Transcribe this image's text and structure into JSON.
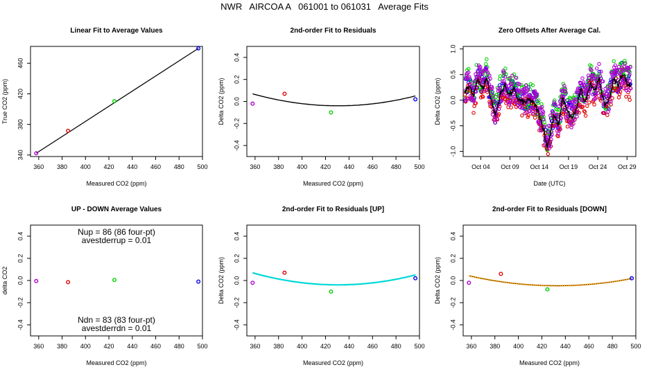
{
  "title": "NWR   AIRCOA A   061001 to 061031   Average Fits",
  "colors": {
    "purple": "#b000d0",
    "red": "#e00000",
    "green": "#00d000",
    "blue": "#0000e0",
    "cyan": "#00d8d8",
    "orange": "#ffa000"
  },
  "chart_data": [
    {
      "type": "scatter",
      "title": "Linear Fit to Average Values",
      "xlabel": "Measured CO2 (ppm)",
      "ylabel": "True CO2 (ppm)",
      "xlim": [
        353,
        500
      ],
      "ylim": [
        338,
        482
      ],
      "xticks": [
        360,
        380,
        400,
        420,
        440,
        460,
        480,
        500
      ],
      "yticks": [
        340,
        380,
        420,
        460
      ],
      "points": [
        {
          "x": 357.9,
          "y": 342.3,
          "color": "purple"
        },
        {
          "x": 385.1,
          "y": 371.6,
          "color": "red"
        },
        {
          "x": 424.7,
          "y": 410.3,
          "color": "green"
        },
        {
          "x": 496.5,
          "y": 479.4,
          "color": "blue"
        }
      ],
      "fit_line": [
        [
          357.9,
          342.3
        ],
        [
          496.5,
          479.4
        ]
      ]
    },
    {
      "type": "scatter",
      "title": "2nd-order Fit to Residuals",
      "xlabel": "Measured CO2 (ppm)",
      "ylabel": "Delta CO2 (ppm)",
      "xlim": [
        353,
        500
      ],
      "ylim": [
        -0.5,
        0.5
      ],
      "xticks": [
        360,
        380,
        400,
        420,
        440,
        460,
        480,
        500
      ],
      "yticks": [
        -0.4,
        -0.2,
        0.0,
        0.2,
        0.4
      ],
      "points": [
        {
          "x": 357.9,
          "y": -0.02,
          "color": "purple"
        },
        {
          "x": 385.1,
          "y": 0.07,
          "color": "red"
        },
        {
          "x": 424.7,
          "y": -0.1,
          "color": "green"
        },
        {
          "x": 496.5,
          "y": 0.02,
          "color": "blue"
        }
      ],
      "fit_curve": {
        "a": 2.06e-05,
        "b": -0.01774,
        "c": 3.78,
        "color": "black"
      }
    },
    {
      "type": "line",
      "title": "Zero Offsets After Average Cal.",
      "xlabel": "Date (UTC)",
      "ylabel": "Delta CO2 (ppm)",
      "xlim": [
        0.5,
        30.0
      ],
      "ylim": [
        -1.1,
        1.05
      ],
      "xticks": [
        {
          "v": 3.5,
          "label": "Oct 04"
        },
        {
          "v": 8.5,
          "label": "Oct 09"
        },
        {
          "v": 13.5,
          "label": "Oct 14"
        },
        {
          "v": 18.5,
          "label": "Oct 19"
        },
        {
          "v": 23.5,
          "label": "Oct 24"
        },
        {
          "v": 28.5,
          "label": "Oct 29"
        }
      ],
      "yticks": [
        -1.0,
        -0.5,
        0.0,
        0.5,
        1.0
      ],
      "series_keypoints": [
        [
          0.8,
          0.15
        ],
        [
          1.5,
          0.3
        ],
        [
          2.3,
          0.05
        ],
        [
          3.0,
          0.45
        ],
        [
          3.8,
          0.2
        ],
        [
          4.5,
          0.45
        ],
        [
          5.3,
          0.0
        ],
        [
          6.0,
          -0.3
        ],
        [
          6.8,
          0.1
        ],
        [
          7.6,
          0.3
        ],
        [
          8.4,
          0.1
        ],
        [
          9.2,
          0.2
        ],
        [
          10.0,
          0.0
        ],
        [
          11.0,
          -0.05
        ],
        [
          12.0,
          0.0
        ],
        [
          12.8,
          -0.1
        ],
        [
          13.6,
          -0.3
        ],
        [
          14.3,
          -0.6
        ],
        [
          14.8,
          -0.9
        ],
        [
          15.3,
          -0.7
        ],
        [
          16.0,
          -0.3
        ],
        [
          16.8,
          -0.5
        ],
        [
          17.5,
          0.05
        ],
        [
          18.2,
          -0.2
        ],
        [
          19.0,
          -0.35
        ],
        [
          19.8,
          -0.2
        ],
        [
          20.6,
          0.2
        ],
        [
          21.4,
          -0.05
        ],
        [
          22.2,
          0.35
        ],
        [
          23.0,
          0.2
        ],
        [
          23.8,
          0.4
        ],
        [
          24.6,
          -0.1
        ],
        [
          25.4,
          0.0
        ],
        [
          26.2,
          0.4
        ],
        [
          27.0,
          0.3
        ],
        [
          27.8,
          0.55
        ],
        [
          28.6,
          0.3
        ],
        [
          29.2,
          0.3
        ]
      ],
      "series": [
        {
          "name": "blue",
          "offset": 0.05,
          "spread": 0.22
        },
        {
          "name": "green",
          "offset": 0.12,
          "spread": 0.25
        },
        {
          "name": "red",
          "offset": -0.12,
          "spread": 0.2
        },
        {
          "name": "purple",
          "offset": 0.07,
          "spread": 0.28
        },
        {
          "name": "black",
          "offset": 0.0,
          "spread": 0.0
        }
      ]
    },
    {
      "type": "scatter",
      "title": "UP - DOWN Average Values",
      "xlabel": "Measured CO2 (ppm)",
      "ylabel": "delta CO2",
      "xlim": [
        353,
        500
      ],
      "ylim": [
        -0.5,
        0.5
      ],
      "xticks": [
        360,
        380,
        400,
        420,
        440,
        460,
        480,
        500
      ],
      "yticks": [
        -0.4,
        -0.2,
        0.0,
        0.2,
        0.4
      ],
      "points": [
        {
          "x": 357.9,
          "y": -0.005,
          "color": "purple"
        },
        {
          "x": 385.1,
          "y": -0.015,
          "color": "red"
        },
        {
          "x": 424.7,
          "y": 0.005,
          "color": "green"
        },
        {
          "x": 496.5,
          "y": -0.01,
          "color": "blue"
        }
      ],
      "annotations_top": [
        "Nup = 86 (86 four-pt)",
        "avestderrup =  0.01"
      ],
      "annotations_bottom": [
        "Ndn = 83 (83 four-pt)",
        "avestderrdn =  0.01"
      ]
    },
    {
      "type": "scatter",
      "title": "2nd-order Fit to Residuals [UP]",
      "xlabel": "Measured CO2 (ppm)",
      "ylabel": "Delta CO2 (ppm)",
      "xlim": [
        353,
        500
      ],
      "ylim": [
        -0.5,
        0.5
      ],
      "xticks": [
        360,
        380,
        400,
        420,
        440,
        460,
        480,
        500
      ],
      "yticks": [
        -0.4,
        -0.2,
        0.0,
        0.2,
        0.4
      ],
      "points": [
        {
          "x": 357.9,
          "y": -0.02,
          "color": "purple"
        },
        {
          "x": 385.1,
          "y": 0.07,
          "color": "red"
        },
        {
          "x": 424.7,
          "y": -0.1,
          "color": "green"
        },
        {
          "x": 496.5,
          "y": 0.02,
          "color": "blue"
        }
      ],
      "fit_curve": {
        "a": 2.06e-05,
        "b": -0.01774,
        "c": 3.78,
        "color": "cyan"
      }
    },
    {
      "type": "scatter",
      "title": "2nd-order Fit to Residuals [DOWN]",
      "xlabel": "Measured CO2 (ppm)",
      "ylabel": "Delta CO2 (ppm)",
      "xlim": [
        353,
        500
      ],
      "ylim": [
        -0.5,
        0.5
      ],
      "xticks": [
        360,
        380,
        400,
        420,
        440,
        460,
        480,
        500
      ],
      "yticks": [
        -0.4,
        -0.2,
        0.0,
        0.2,
        0.4
      ],
      "points": [
        {
          "x": 357.9,
          "y": -0.02,
          "color": "purple"
        },
        {
          "x": 385.1,
          "y": 0.06,
          "color": "red"
        },
        {
          "x": 424.7,
          "y": -0.08,
          "color": "green"
        },
        {
          "x": 496.5,
          "y": 0.02,
          "color": "blue"
        }
      ],
      "fit_curve": {
        "a": 1.6e-05,
        "b": -0.01385,
        "c": 2.95,
        "color": "orange"
      }
    }
  ]
}
